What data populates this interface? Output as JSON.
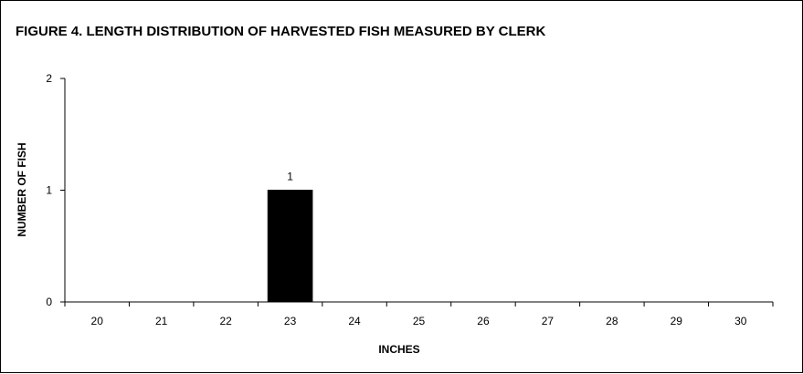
{
  "chart_data": {
    "type": "bar",
    "title": "FIGURE 4.  LENGTH DISTRIBUTION OF HARVESTED FISH MEASURED BY CLERK",
    "xlabel": "INCHES",
    "ylabel": "NUMBER OF FISH",
    "categories": [
      "20",
      "21",
      "22",
      "23",
      "24",
      "25",
      "26",
      "27",
      "28",
      "29",
      "30"
    ],
    "values": [
      0,
      0,
      0,
      1,
      0,
      0,
      0,
      0,
      0,
      0,
      0
    ],
    "data_labels": {
      "23": "1"
    },
    "ylim": [
      0,
      2
    ],
    "yticks": [
      "0",
      "1",
      "2"
    ],
    "grid": false,
    "legend": "none",
    "bar_color": "#000000"
  }
}
